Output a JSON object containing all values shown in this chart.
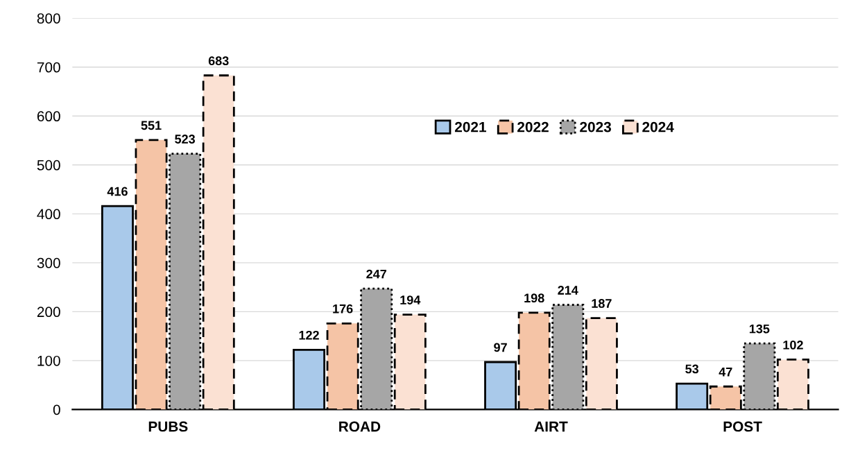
{
  "chart_data": {
    "type": "bar",
    "categories": [
      "PUBS",
      "ROAD",
      "AIRT",
      "POST"
    ],
    "series": [
      {
        "name": "2021",
        "color": "#a9c9ea",
        "line_style": "solid",
        "values": [
          416,
          122,
          97,
          53
        ]
      },
      {
        "name": "2022",
        "color": "#f5c4a6",
        "line_style": "dashed",
        "values": [
          551,
          176,
          198,
          47
        ]
      },
      {
        "name": "2023",
        "color": "#a6a6a6",
        "line_style": "dotted",
        "values": [
          523,
          247,
          214,
          135
        ]
      },
      {
        "name": "2024",
        "color": "#fbe1d3",
        "line_style": "dashed",
        "values": [
          683,
          194,
          187,
          102
        ]
      }
    ],
    "ylim": [
      0,
      800
    ],
    "yticks": [
      0,
      100,
      200,
      300,
      400,
      500,
      600,
      700,
      800
    ],
    "grid": "y",
    "legend": "top",
    "data_labels": true
  }
}
